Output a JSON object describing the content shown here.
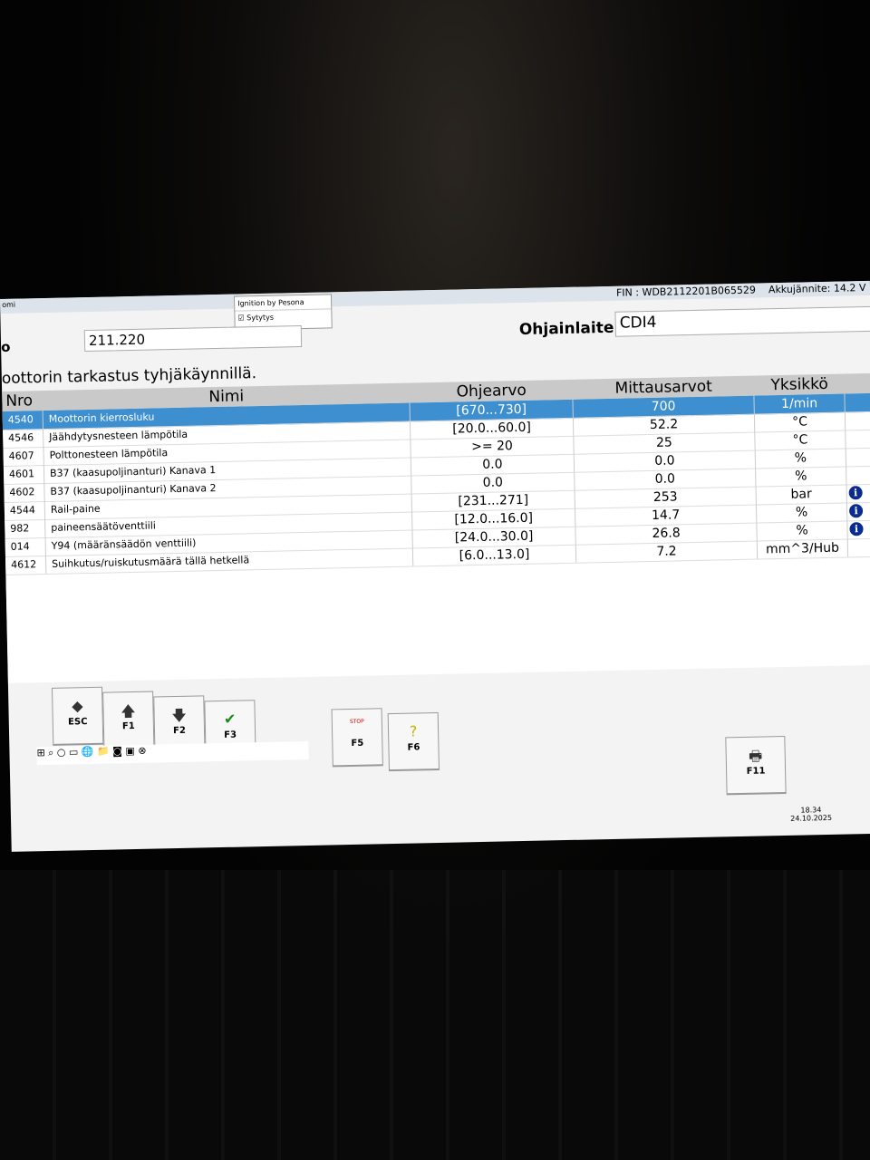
{
  "header": {
    "window_title": "omi",
    "fin": "FIN : WDB2112201B065529",
    "battery": "Akkujännite: 14.2 V"
  },
  "popup": {
    "title": "Ignition by Pesona",
    "checkbox": "Sytytys"
  },
  "form": {
    "model_label": "o",
    "model": "211.220",
    "unit_label": "Ohjainlaite",
    "unit": "CDI4",
    "subtitle": "oottorin tarkastus tyhjäkäynnillä."
  },
  "table": {
    "columns": [
      "Nro",
      "Nimi",
      "Ohjearvo",
      "Mittausarvot",
      "Yksikkö"
    ],
    "rows": [
      {
        "nro": "4540",
        "name": "Moottorin kierrosluku",
        "ref": "[670...730]",
        "value": "700",
        "unit": "1/min",
        "info": false
      },
      {
        "nro": "4546",
        "name": "Jäähdytysnesteen lämpötila",
        "ref": "[20.0...60.0]",
        "value": "52.2",
        "unit": "°C",
        "info": false
      },
      {
        "nro": "4607",
        "name": "Polttonesteen lämpötila",
        "ref": ">= 20",
        "value": "25",
        "unit": "°C",
        "info": false
      },
      {
        "nro": "4601",
        "name": "B37 (kaasupoljinanturi) Kanava 1",
        "ref": "0.0",
        "value": "0.0",
        "unit": "%",
        "info": false
      },
      {
        "nro": "4602",
        "name": "B37 (kaasupoljinanturi) Kanava 2",
        "ref": "0.0",
        "value": "0.0",
        "unit": "%",
        "info": false
      },
      {
        "nro": "4544",
        "name": "Rail-paine",
        "ref": "[231...271]",
        "value": "253",
        "unit": "bar",
        "info": true
      },
      {
        "nro": "982",
        "name": "paineensäätöventtiili",
        "ref": "[12.0...16.0]",
        "value": "14.7",
        "unit": "%",
        "info": true
      },
      {
        "nro": "014",
        "name": "Y94 (määränsäädön venttiili)",
        "ref": "[24.0...30.0]",
        "value": "26.8",
        "unit": "%",
        "info": true
      },
      {
        "nro": "4612",
        "name": "Suihkutus/ruiskutusmäärä tällä hetkellä",
        "ref": "[6.0...13.0]",
        "value": "7.2",
        "unit": "mm^3/Hub",
        "info": false
      }
    ]
  },
  "buttons": [
    {
      "key": "ESC",
      "icon": "◆"
    },
    {
      "key": "F1",
      "icon": "🡅"
    },
    {
      "key": "F2",
      "icon": "🡇"
    },
    {
      "key": "F3",
      "icon": "✔"
    },
    {
      "key": "F5",
      "icon": "STOP"
    },
    {
      "key": "F6",
      "icon": "?"
    },
    {
      "key": "F11",
      "icon": "🖶"
    }
  ],
  "taskbar": {
    "time": "18.34",
    "date": "24.10.2025"
  }
}
